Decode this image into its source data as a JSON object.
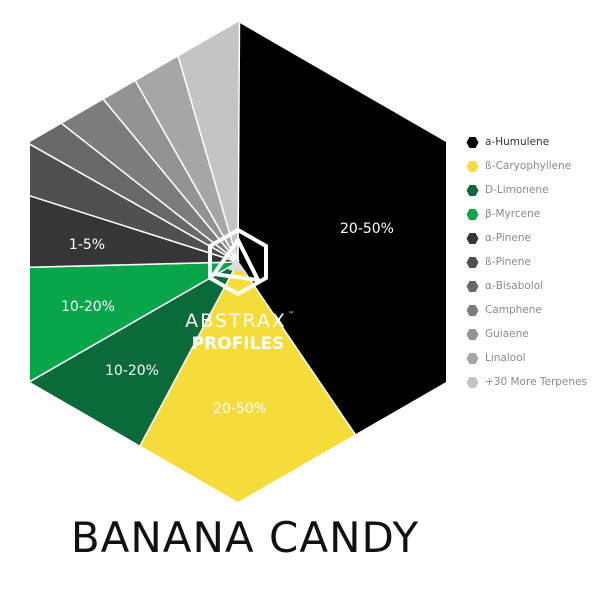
{
  "chart_data": {
    "type": "pie",
    "shape": "hexagon",
    "title": "BANANA CANDY",
    "slices": [
      {
        "name": "a-Humulene",
        "label": "20-50%",
        "share_percent": 40.5,
        "color": "#000000"
      },
      {
        "name": "ß-Caryophyllene",
        "label": "20-50%",
        "share_percent": 17.3,
        "color": "#f6dc3a"
      },
      {
        "name": "D-Limonene",
        "label": "10-20%",
        "share_percent": 8.9,
        "color": "#0b6a3a"
      },
      {
        "name": "β-Myrcene",
        "label": "10-20%",
        "share_percent": 7.9,
        "color": "#08a64b"
      },
      {
        "name": "α-Pinene",
        "label": "1-5%",
        "share_percent": 5.3,
        "color": "#363638"
      },
      {
        "name": "ß-Pinene",
        "label": "",
        "share_percent": 3.3,
        "color": "#505052"
      },
      {
        "name": "α-Bisabolol",
        "label": "",
        "share_percent": 2.4,
        "color": "#68686a"
      },
      {
        "name": "Camphene",
        "label": "",
        "share_percent": 3.4,
        "color": "#7c7c7e"
      },
      {
        "name": "Guiaene",
        "label": "",
        "share_percent": 2.8,
        "color": "#939395"
      },
      {
        "name": "Linalool",
        "label": "",
        "share_percent": 3.7,
        "color": "#a6a6a8"
      },
      {
        "name": "+30 More Terpenes",
        "label": "",
        "share_percent": 4.6,
        "color": "#c4c4c6"
      }
    ],
    "legend_position": "right"
  },
  "logo": {
    "brand": "ABSTRAX",
    "trademark": "™",
    "sub": "PROFILES"
  }
}
